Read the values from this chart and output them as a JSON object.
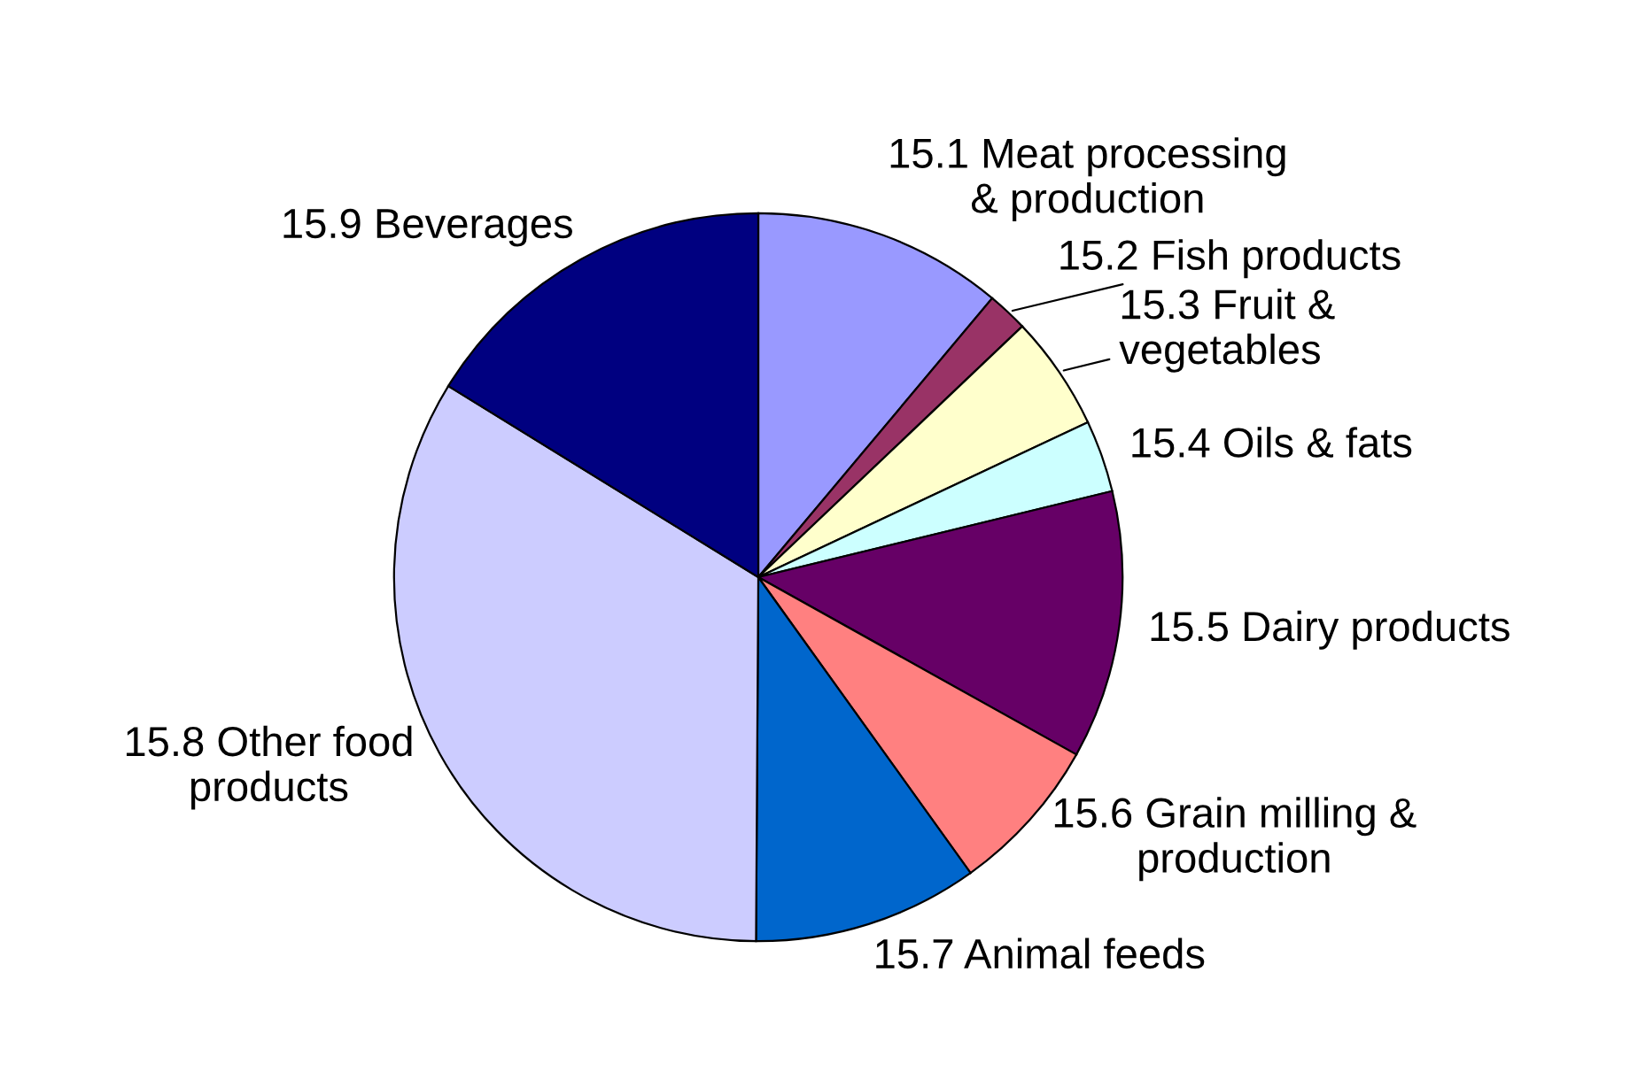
{
  "chart_data": {
    "type": "pie",
    "categories": [
      "15.1 Meat processing\n& production",
      "15.2 Fish products",
      "15.3 Fruit &\nvegetables",
      "15.4 Oils & fats",
      "15.5 Dairy products",
      "15.6 Grain milling &\nproduction",
      "15.7 Animal feeds",
      "15.8 Other food\nproducts",
      "15.9 Beverages"
    ],
    "values": [
      11.1,
      1.8,
      5.1,
      3.2,
      11.9,
      7.0,
      10.0,
      33.7,
      16.2
    ],
    "colors": [
      "#9999ff",
      "#993366",
      "#ffffcc",
      "#ccffff",
      "#660066",
      "#ff8080",
      "#0066cc",
      "#ccccff",
      "#000080"
    ],
    "legend": false
  }
}
